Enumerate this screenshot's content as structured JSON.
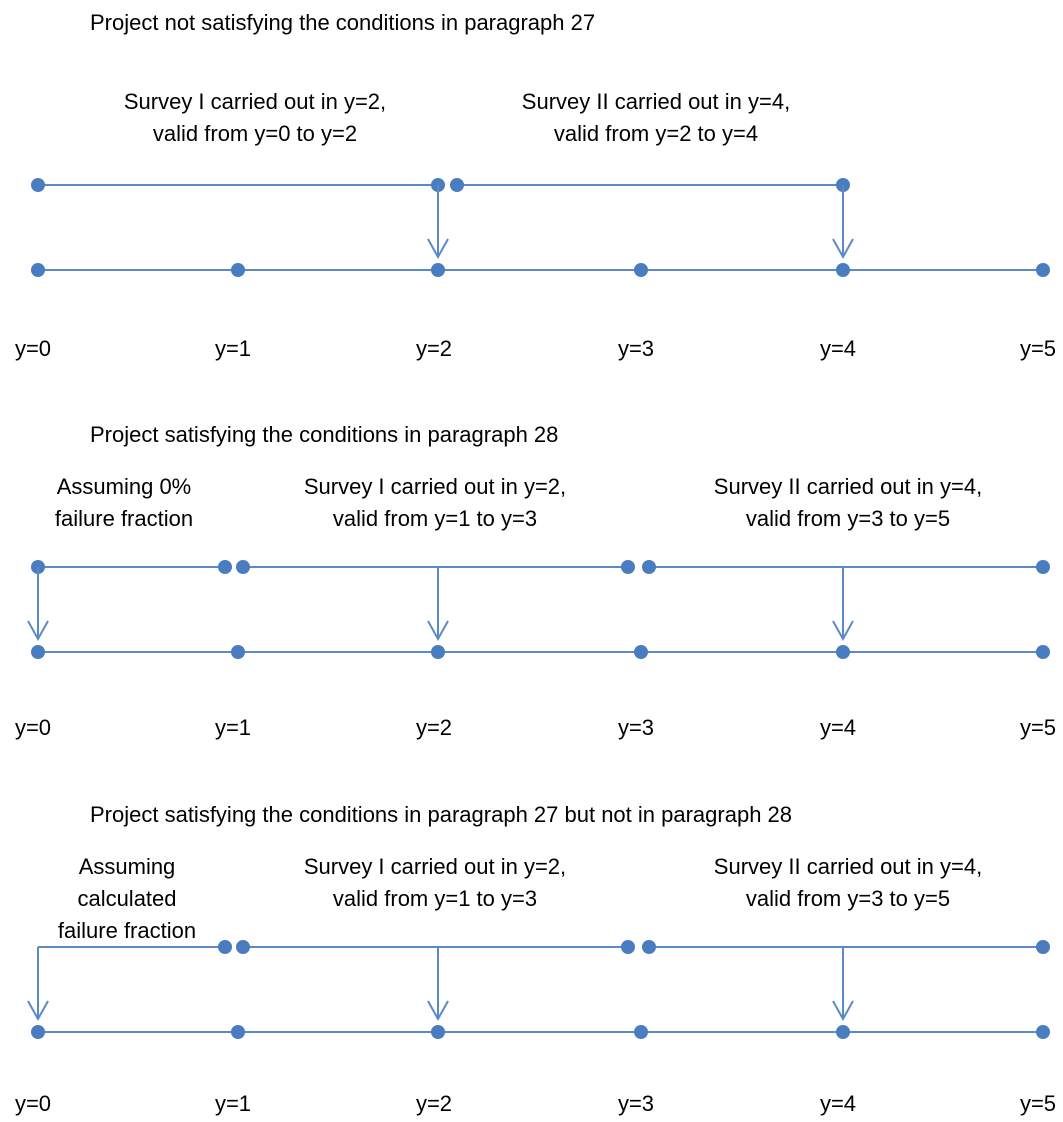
{
  "colors": {
    "line": "#5b8ac6",
    "dot": "#4a7cc0",
    "text": "#000000"
  },
  "icons": {
    "point": "circle-dot",
    "arrow": "down-arrow"
  },
  "tick_labels": [
    "y=0",
    "y=1",
    "y=2",
    "y=3",
    "y=4",
    "y=5"
  ],
  "sections": [
    {
      "title": "Project not satisfying the conditions in paragraph 27",
      "annotations": [
        {
          "lines": [
            "Survey I carried out in y=2,",
            "valid from y=0 to y=2"
          ],
          "measured_at": 2,
          "valid_from": 0,
          "valid_to": 2
        },
        {
          "lines": [
            "Survey II carried out in y=4,",
            "valid from y=2 to y=4"
          ],
          "measured_at": 4,
          "valid_from": 2,
          "valid_to": 4
        }
      ]
    },
    {
      "title": "Project satisfying the conditions in paragraph 28",
      "annotations": [
        {
          "lines": [
            "Assuming 0%",
            "failure fraction"
          ],
          "measured_at": 0,
          "valid_from": 0,
          "valid_to": 1
        },
        {
          "lines": [
            "Survey I carried out in y=2,",
            "valid from y=1 to y=3"
          ],
          "measured_at": 2,
          "valid_from": 1,
          "valid_to": 3
        },
        {
          "lines": [
            "Survey II carried out in y=4,",
            "valid from y=3 to y=5"
          ],
          "measured_at": 4,
          "valid_from": 3,
          "valid_to": 5
        }
      ]
    },
    {
      "title": "Project satisfying the conditions in paragraph 27 but not in paragraph 28",
      "annotations": [
        {
          "lines": [
            "Assuming",
            "calculated",
            "failure fraction"
          ],
          "measured_at": 0,
          "valid_from": 0,
          "valid_to": 1
        },
        {
          "lines": [
            "Survey I carried out in y=2,",
            "valid from y=1 to y=3"
          ],
          "measured_at": 2,
          "valid_from": 1,
          "valid_to": 3
        },
        {
          "lines": [
            "Survey II carried out in y=4,",
            "valid from y=3 to y=5"
          ],
          "measured_at": 4,
          "valid_from": 3,
          "valid_to": 5
        }
      ]
    }
  ]
}
